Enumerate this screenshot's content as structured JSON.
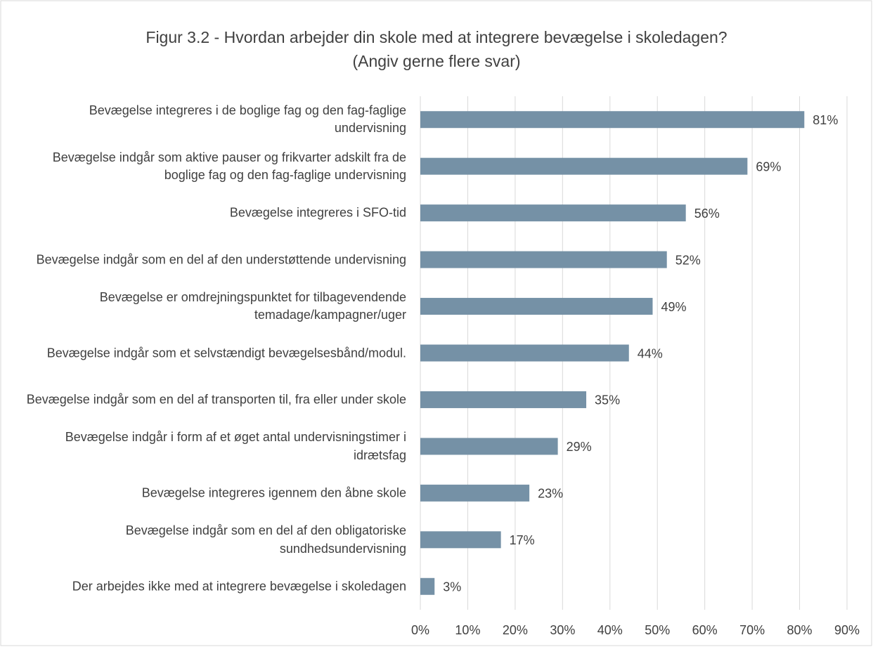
{
  "chart_data": {
    "type": "barh",
    "title": "Figur 3.2 - Hvordan arbejder din skole med at integrere bevægelse i skoledagen?",
    "subtitle": "(Angiv gerne flere svar)",
    "categories": [
      "Bevægelse integreres i de boglige fag og den fag-faglige undervisning",
      "Bevægelse indgår som aktive pauser og frikvarter adskilt fra de boglige fag og den fag-faglige undervisning",
      "Bevægelse integreres i SFO-tid",
      "Bevægelse indgår som en del af den understøttende undervisning",
      "Bevægelse er omdrejningspunktet for tilbagevendende temadage/kampagner/uger",
      "Bevægelse indgår som et selvstændigt bevægelsesbånd/modul.",
      "Bevægelse indgår som en del af transporten til, fra eller under skole",
      "Bevægelse indgår i form af et øget antal undervisningstimer i idrætsfag",
      "Bevægelse integreres igennem den åbne skole",
      "Bevægelse indgår som en del af den obligatoriske sundhedsundervisning",
      "Der arbejdes ikke med at integrere bevægelse i skoledagen"
    ],
    "values": [
      81,
      69,
      56,
      52,
      49,
      44,
      35,
      29,
      23,
      17,
      3
    ],
    "value_labels": [
      "81%",
      "69%",
      "56%",
      "52%",
      "49%",
      "44%",
      "35%",
      "29%",
      "23%",
      "17%",
      "3%"
    ],
    "color": "#7591a6",
    "xlim": [
      0,
      90
    ],
    "xticks": [
      {
        "value": 0,
        "label": "0%"
      },
      {
        "value": 10,
        "label": "10%"
      },
      {
        "value": 20,
        "label": "20%"
      },
      {
        "value": 30,
        "label": "30%"
      },
      {
        "value": 40,
        "label": "40%"
      },
      {
        "value": 50,
        "label": "50%"
      },
      {
        "value": 60,
        "label": "60%"
      },
      {
        "value": 70,
        "label": "70%"
      },
      {
        "value": 80,
        "label": "80%"
      },
      {
        "value": 90,
        "label": "90%"
      }
    ],
    "grid": true
  }
}
